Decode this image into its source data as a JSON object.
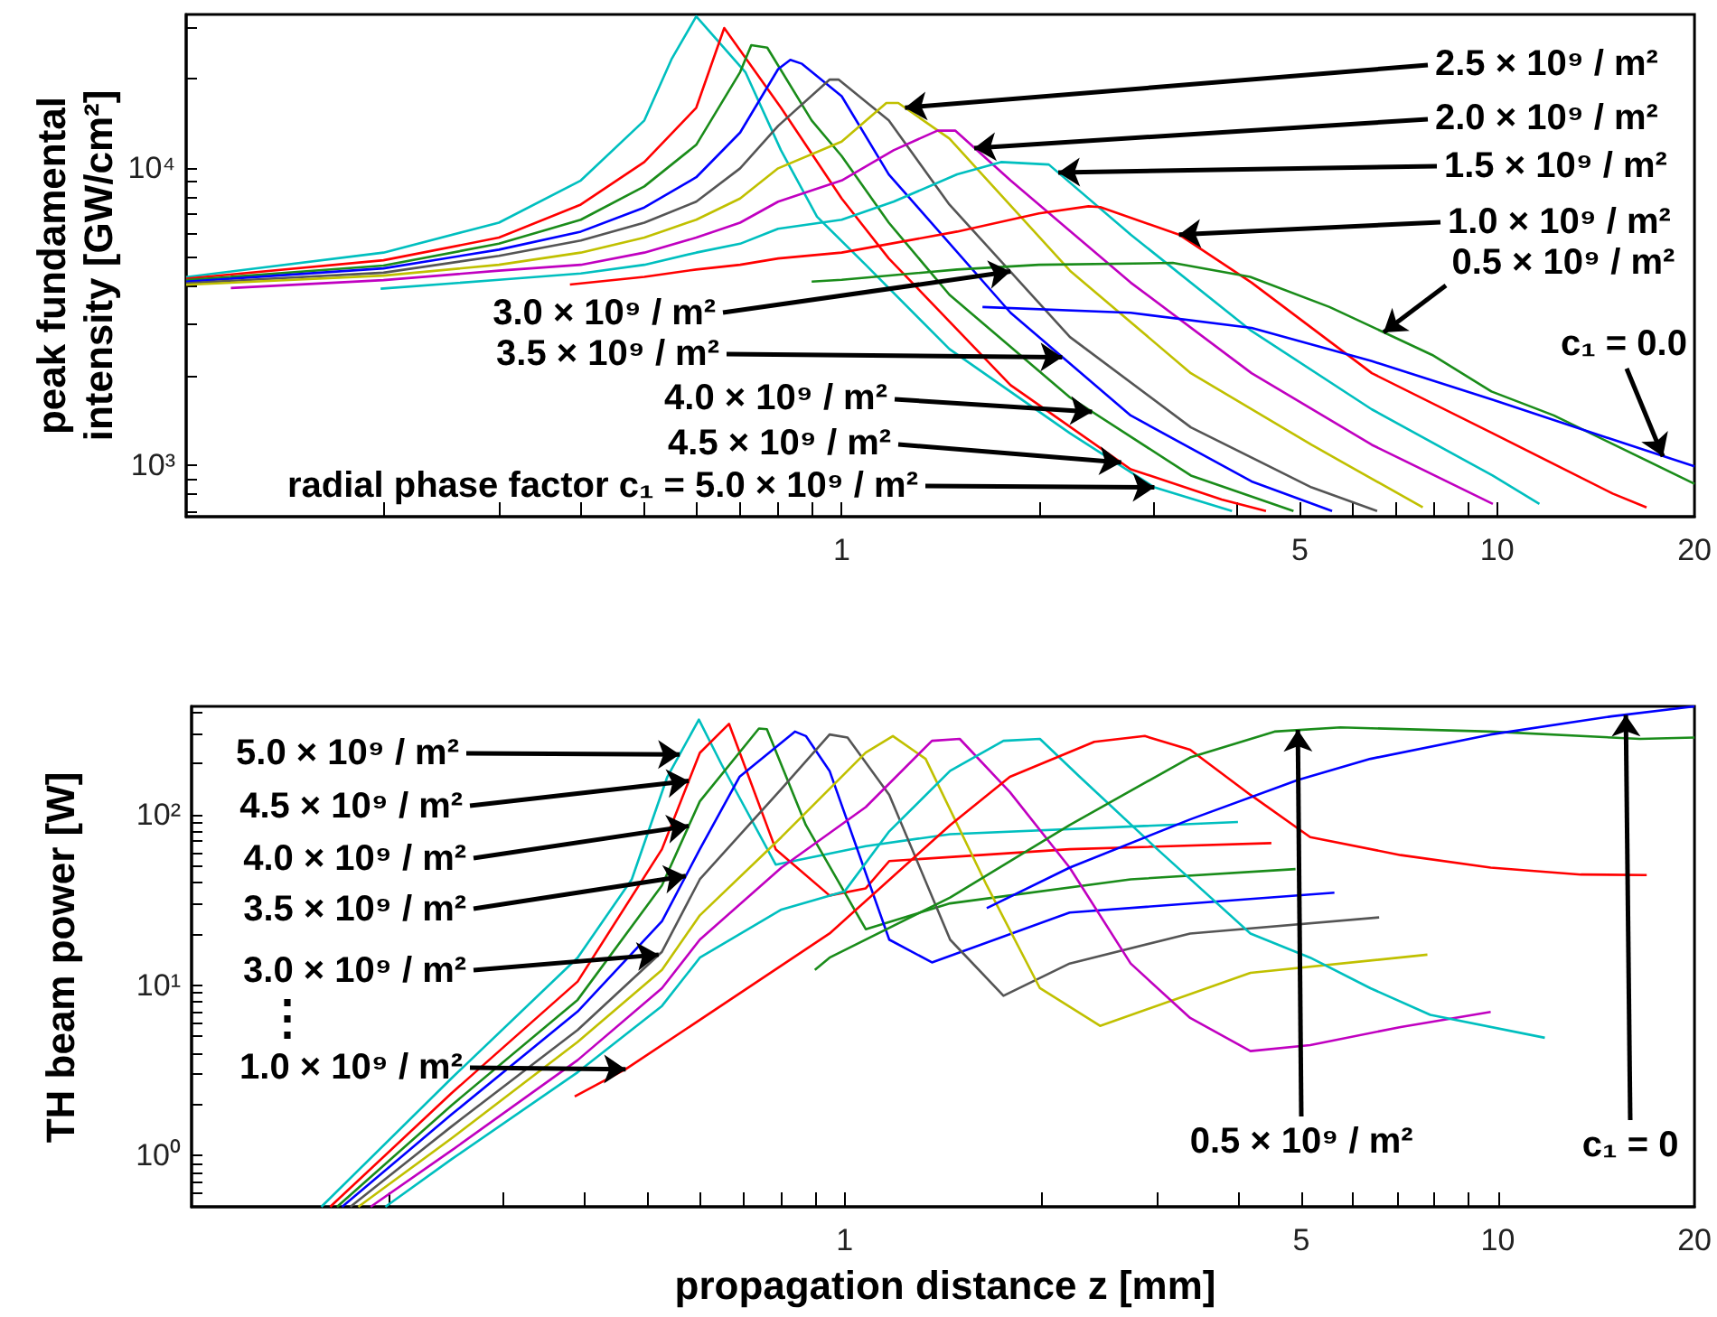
{
  "chart_data": [
    {
      "type": "line",
      "log": "xy",
      "marker": "none",
      "ylabel": "peak fundamental intensity [GW/cm²]",
      "xlim": [
        0.1,
        20
      ],
      "ylim": [
        670,
        33000
      ],
      "xticks": [
        {
          "value": 0.2,
          "label": null
        },
        {
          "value": 0.3,
          "label": null
        },
        {
          "value": 0.4,
          "label": null
        },
        {
          "value": 0.5,
          "label": null
        },
        {
          "value": 0.6,
          "label": null
        },
        {
          "value": 0.7,
          "label": null
        },
        {
          "value": 0.8,
          "label": null
        },
        {
          "value": 0.9,
          "label": null
        },
        1,
        {
          "value": 2,
          "label": null
        },
        {
          "value": 3,
          "label": null
        },
        {
          "value": 4,
          "label": null
        },
        5,
        {
          "value": 6,
          "label": null
        },
        {
          "value": 7,
          "label": null
        },
        {
          "value": 8,
          "label": null
        },
        {
          "value": 9,
          "label": null
        },
        10,
        20
      ],
      "yticks": [
        {
          "value": 700,
          "label": null
        },
        {
          "value": 800,
          "label": null
        },
        {
          "value": 900,
          "label": null
        },
        {
          "value": 1000,
          "label": "10³"
        },
        {
          "value": 2000,
          "label": null
        },
        {
          "value": 3000,
          "label": null
        },
        {
          "value": 4000,
          "label": null
        },
        {
          "value": 5000,
          "label": null
        },
        {
          "value": 6000,
          "label": null
        },
        {
          "value": 7000,
          "label": null
        },
        {
          "value": 8000,
          "label": null
        },
        {
          "value": 9000,
          "label": null
        },
        {
          "value": 10000,
          "label": "10⁴"
        },
        {
          "value": 20000,
          "label": null
        },
        {
          "value": 30000,
          "label": null
        }
      ],
      "series": [
        {
          "color": "#00bfbf",
          "x": [
            0.1,
            0.2,
            0.3,
            0.4,
            0.5,
            0.55,
            0.6,
            0.713,
            0.808,
            0.917,
            1.088,
            1.46,
            2.23,
            3.0,
            3.94
          ],
          "values": [
            4300,
            5200,
            6560,
            9100,
            14500,
            23300,
            32500,
            21100,
            11500,
            6870,
            4730,
            2460,
            1280,
            841,
            700
          ]
        },
        {
          "color": "#ff0000",
          "x": [
            0.1,
            0.2,
            0.3,
            0.4,
            0.5,
            0.6,
            0.662,
            0.808,
            1.0,
            1.18,
            1.81,
            2.76,
            3.8,
            4.44
          ],
          "values": [
            4250,
            4900,
            5840,
            7550,
            10500,
            16000,
            29700,
            16000,
            7910,
            4970,
            1860,
            968,
            766,
            700
          ]
        },
        {
          "color": "#1a8c1a",
          "x": [
            0.1,
            0.2,
            0.3,
            0.4,
            0.5,
            0.6,
            0.7,
            0.728,
            0.77,
            0.9,
            1.0,
            1.18,
            1.46,
            2.23,
            3.41,
            4.89
          ],
          "values": [
            4200,
            4700,
            5570,
            6710,
            8690,
            12000,
            21100,
            26000,
            25500,
            14500,
            11000,
            6560,
            3750,
            1690,
            922,
            700
          ]
        },
        {
          "color": "#0000ff",
          "x": [
            0.1,
            0.2,
            0.3,
            0.4,
            0.5,
            0.6,
            0.7,
            0.8,
            0.835,
            0.87,
            1.0,
            1.18,
            1.81,
            2.76,
            4.22,
            5.6
          ],
          "values": [
            4150,
            4600,
            5320,
            6120,
            7380,
            9330,
            13200,
            21600,
            23200,
            22500,
            17500,
            9540,
            3260,
            1470,
            881,
            700
          ]
        },
        {
          "color": "#555555",
          "x": [
            0.1,
            0.2,
            0.3,
            0.4,
            0.5,
            0.6,
            0.7,
            0.8,
            0.958,
            0.99,
            1.18,
            1.46,
            2.23,
            3.41,
            5.21,
            6.56
          ],
          "values": [
            4100,
            4450,
            5070,
            5710,
            6560,
            7720,
            10000,
            13900,
            19900,
            19900,
            14500,
            7550,
            2700,
            1340,
            841,
            700
          ]
        },
        {
          "color": "#c0c000",
          "x": [
            0.1,
            0.2,
            0.3,
            0.4,
            0.5,
            0.6,
            0.7,
            0.8,
            1.0,
            1.17,
            1.22,
            1.46,
            2.23,
            3.41,
            5.21,
            7.7
          ],
          "values": [
            4050,
            4350,
            4730,
            5200,
            5840,
            6710,
            7910,
            10000,
            12300,
            16600,
            16600,
            12600,
            4520,
            2040,
            1170,
            720
          ]
        },
        {
          "color": "#c000c0",
          "x": [
            0.117,
            0.2,
            0.3,
            0.4,
            0.5,
            0.6,
            0.7,
            0.8,
            1.0,
            1.2,
            1.4,
            1.49,
            1.81,
            2.76,
            4.22,
            6.44,
            9.85
          ],
          "values": [
            3950,
            4200,
            4520,
            4730,
            5200,
            5840,
            6560,
            7720,
            9100,
            11500,
            13400,
            13400,
            9100,
            4120,
            2040,
            1170,
            740
          ]
        },
        {
          "color": "#00bfbf",
          "x": [
            0.198,
            0.3,
            0.4,
            0.5,
            0.6,
            0.7,
            0.8,
            1.0,
            1.2,
            1.5,
            1.75,
            2.07,
            2.76,
            4.22,
            6.44,
            9.84,
            11.6
          ],
          "values": [
            3930,
            4210,
            4420,
            4730,
            5200,
            5570,
            6260,
            6710,
            7720,
            9540,
            10500,
            10300,
            5980,
            2830,
            1540,
            922,
            740
          ]
        },
        {
          "color": "#ff0000",
          "x": [
            0.385,
            0.5,
            0.6,
            0.7,
            0.8,
            1.0,
            1.5,
            2.0,
            2.38,
            2.48,
            3.27,
            4.22,
            6.44,
            9.84,
            15.0,
            16.9
          ],
          "values": [
            4060,
            4310,
            4560,
            4730,
            4970,
            5200,
            6120,
            7050,
            7450,
            7400,
            5980,
            4120,
            2040,
            1280,
            802,
            720
          ]
        },
        {
          "color": "#1a8c1a",
          "x": [
            0.9,
            1.0,
            1.5,
            2.0,
            3.2,
            4.2,
            5.55,
            7.96,
            9.8,
            12.2,
            20
          ],
          "values": [
            4150,
            4210,
            4560,
            4730,
            4800,
            4310,
            3410,
            2350,
            1770,
            1470,
            865
          ]
        },
        {
          "color": "#0000ff",
          "x": [
            1.64,
            2.76,
            4.22,
            6.44,
            9.84,
            15.0,
            20
          ],
          "values": [
            3410,
            3260,
            2900,
            2240,
            1660,
            1220,
            990
          ]
        }
      ],
      "annotations": [
        {
          "text": "2.5 × 10⁹ / m²",
          "x": 1.249,
          "y": 16000
        },
        {
          "text": "2.0 × 10⁹ / m²",
          "x": 1.593,
          "y": 11700
        },
        {
          "text": "1.5 × 10⁹ / m²",
          "x": 2.14,
          "y": 9680
        },
        {
          "text": "1.0 × 10⁹ / m²",
          "x": 3.27,
          "y": 5980
        },
        {
          "text": "0.5 × 10⁹ / m²",
          "x": 6.71,
          "y": 2800
        },
        {
          "text": "c₁ = 0.0",
          "x": 17.9,
          "y": 1070
        },
        {
          "text": "3.0 × 10⁹ / m²",
          "x": 1.81,
          "y": 4490
        },
        {
          "text": "3.5 × 10⁹ / m²",
          "x": 2.17,
          "y": 2310
        },
        {
          "text": "4.0 × 10⁹ / m²",
          "x": 2.41,
          "y": 1510
        },
        {
          "text": "4.5 × 10⁹ / m²",
          "x": 2.67,
          "y": 1020
        },
        {
          "text": "radial phase factor c₁ = 5.0 × 10⁹ / m²",
          "x": 3.0,
          "y": 841
        }
      ]
    },
    {
      "type": "line",
      "log": "xy",
      "marker": "none",
      "ylabel": "TH beam power [W]",
      "xlabel": "propagation distance z [mm]",
      "xlim": [
        0.1,
        20
      ],
      "ylim": [
        0.5,
        433
      ],
      "xticks": [
        {
          "value": 0.2,
          "label": null
        },
        {
          "value": 0.3,
          "label": null
        },
        {
          "value": 0.4,
          "label": null
        },
        {
          "value": 0.5,
          "label": null
        },
        {
          "value": 0.6,
          "label": null
        },
        {
          "value": 0.7,
          "label": null
        },
        {
          "value": 0.8,
          "label": null
        },
        {
          "value": 0.9,
          "label": null
        },
        1,
        {
          "value": 2,
          "label": null
        },
        {
          "value": 3,
          "label": null
        },
        {
          "value": 4,
          "label": null
        },
        5,
        {
          "value": 6,
          "label": null
        },
        {
          "value": 7,
          "label": null
        },
        {
          "value": 8,
          "label": null
        },
        {
          "value": 9,
          "label": null
        },
        10,
        20
      ],
      "yticks": [
        {
          "value": 0.6,
          "label": null
        },
        {
          "value": 0.7,
          "label": null
        },
        {
          "value": 0.8,
          "label": null
        },
        {
          "value": 0.9,
          "label": null
        },
        {
          "value": 1,
          "label": "10⁰"
        },
        {
          "value": 2,
          "label": null
        },
        {
          "value": 3,
          "label": null
        },
        {
          "value": 4,
          "label": null
        },
        {
          "value": 5,
          "label": null
        },
        {
          "value": 6,
          "label": null
        },
        {
          "value": 7,
          "label": null
        },
        {
          "value": 8,
          "label": null
        },
        {
          "value": 9,
          "label": null
        },
        {
          "value": 10,
          "label": "10¹"
        },
        {
          "value": 20,
          "label": null
        },
        {
          "value": 30,
          "label": null
        },
        {
          "value": 40,
          "label": null
        },
        {
          "value": 50,
          "label": null
        },
        {
          "value": 60,
          "label": null
        },
        {
          "value": 70,
          "label": null
        },
        {
          "value": 80,
          "label": null
        },
        {
          "value": 90,
          "label": null
        },
        {
          "value": 100,
          "label": "10²"
        },
        {
          "value": 200,
          "label": null
        },
        {
          "value": 300,
          "label": null
        },
        {
          "value": 400,
          "label": null
        }
      ],
      "series": [
        {
          "color": "#00bfbf",
          "x": [
            0.158,
            0.25,
            0.39,
            0.472,
            0.535,
            0.598,
            0.648,
            0.784,
            1.077,
            1.45,
            4.0
          ],
          "values": [
            0.5,
            2.84,
            14.5,
            41.8,
            167,
            362,
            197,
            51,
            65.5,
            77,
            90.7
          ]
        },
        {
          "color": "#ff0000",
          "x": [
            0.163,
            0.25,
            0.39,
            0.525,
            0.6,
            0.665,
            0.784,
            0.948,
            1.077,
            1.17,
            2.21,
            4.5
          ],
          "values": [
            0.5,
            2.32,
            10.5,
            62.8,
            231,
            342,
            62.8,
            33.6,
            37,
            53.5,
            62.8,
            68.2
          ]
        },
        {
          "color": "#1a8c1a",
          "x": [
            0.167,
            0.25,
            0.39,
            0.525,
            0.6,
            0.739,
            0.76,
            0.872,
            1.077,
            1.45,
            2.74,
            4.9
          ],
          "values": [
            0.5,
            1.97,
            8.2,
            38.5,
            120,
            321,
            318,
            87,
            21.3,
            30.2,
            41.8,
            48
          ]
        },
        {
          "color": "#0000ff",
          "x": [
            0.17,
            0.25,
            0.39,
            0.525,
            0.6,
            0.69,
            0.839,
            0.872,
            0.948,
            1.17,
            1.36,
            2.21,
            5.62
          ],
          "values": [
            0.5,
            1.74,
            7.0,
            23.7,
            62.8,
            167,
            308,
            290,
            181,
            18.5,
            13.6,
            26.7,
            34.9
          ]
        },
        {
          "color": "#555555",
          "x": [
            0.175,
            0.25,
            0.39,
            0.525,
            0.6,
            0.8,
            0.948,
            1.01,
            1.17,
            1.45,
            1.75,
            2.21,
            3.38,
            6.58
          ],
          "values": [
            0.5,
            1.48,
            5.46,
            15.7,
            41.8,
            142,
            296,
            284,
            131,
            18.5,
            8.67,
            13.4,
            20.1,
            25
          ]
        },
        {
          "color": "#c0c000",
          "x": [
            0.18,
            0.25,
            0.39,
            0.525,
            0.6,
            0.8,
            1.077,
            1.185,
            1.33,
            1.65,
            1.99,
            2.46,
            4.18,
            7.8
          ],
          "values": [
            0.5,
            1.26,
            4.64,
            12.3,
            25.7,
            74,
            232,
            290,
            213,
            38.5,
            9.6,
            5.77,
            11.8,
            15.1
          ]
        },
        {
          "color": "#c000c0",
          "x": [
            0.188,
            0.25,
            0.39,
            0.525,
            0.6,
            0.8,
            1.077,
            1.36,
            1.5,
            1.79,
            2.21,
            2.74,
            3.38,
            4.18,
            5.16,
            7.1,
            9.75
          ],
          "values": [
            0.5,
            1.07,
            3.63,
            9.6,
            18.5,
            49,
            111,
            272,
            279,
            136,
            49,
            13.4,
            6.42,
            4.1,
            4.45,
            5.68,
            6.97
          ]
        },
        {
          "color": "#00bfbf",
          "x": [
            0.198,
            0.25,
            0.39,
            0.525,
            0.6,
            0.8,
            1.0,
            1.17,
            1.45,
            1.75,
            1.99,
            2.29,
            3.01,
            4.18,
            5.16,
            6.38,
            7.88,
            11.8
          ],
          "values": [
            0.5,
            0.95,
            3.08,
            7.55,
            14.5,
            27.8,
            35.6,
            80,
            181,
            272,
            279,
            167,
            62.8,
            20.1,
            14.5,
            9.6,
            6.69,
            4.91
          ]
        },
        {
          "color": "#ff0000",
          "x": [
            0.386,
            0.462,
            0.948,
            1.45,
            1.79,
            2.41,
            2.88,
            3.38,
            4.18,
            5.16,
            7.1,
            9.75,
            13.4,
            16.9
          ],
          "values": [
            2.22,
            3.21,
            20.1,
            87,
            167,
            268,
            290,
            241,
            131,
            74,
            58,
            49,
            44.6,
            44.3
          ]
        },
        {
          "color": "#1a8c1a",
          "x": [
            0.9,
            0.948,
            1.45,
            2.21,
            3.38,
            4.55,
            5.74,
            9.75,
            16.5,
            20
          ],
          "values": [
            12.3,
            14.5,
            32.7,
            87,
            217,
            308,
            326,
            308,
            279,
            284
          ]
        },
        {
          "color": "#0000ff",
          "x": [
            1.65,
            2.21,
            3.38,
            4.94,
            6.38,
            9.75,
            14.9,
            20
          ],
          "values": [
            28.3,
            49,
            94,
            160,
            213,
            296,
            378,
            433
          ]
        }
      ],
      "annotations": [
        {
          "text": "5.0 × 10⁹ / m²",
          "x": 0.559,
          "y": 226
        },
        {
          "text": "4.5 × 10⁹ / m²",
          "x": 0.577,
          "y": 158
        },
        {
          "text": "4.0 × 10⁹ / m²",
          "x": 0.577,
          "y": 86
        },
        {
          "text": "3.5 × 10⁹ / m²",
          "x": 0.571,
          "y": 43.7
        },
        {
          "text": "3.0 × 10⁹ / m²",
          "x": 0.519,
          "y": 15.1
        },
        "⋮",
        {
          "text": "1.0 × 10⁹ / m²",
          "x": 0.462,
          "y": 3.21
        },
        {
          "text": "0.5 × 10⁹ / m²",
          "x": 4.94,
          "y": 315
        },
        {
          "text": "c₁ = 0",
          "x": 15.7,
          "y": 386
        }
      ]
    }
  ]
}
